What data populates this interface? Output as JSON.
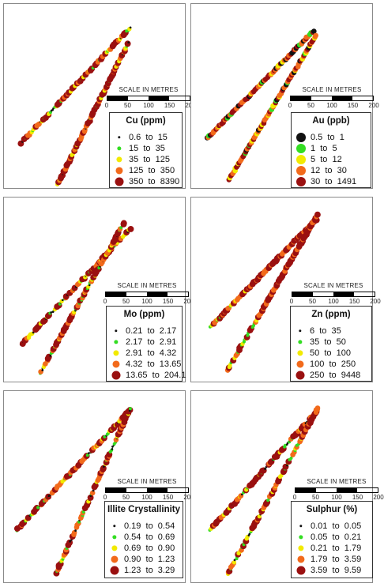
{
  "scale_title": "SCALE IN METRES",
  "scale_ticks": [
    "0",
    "50",
    "100",
    "150",
    "200"
  ],
  "chart_data": [
    {
      "type": "scatter",
      "title": "Cu (ppm)",
      "legend": [
        {
          "label": "0.6  to  15",
          "color": "#111111",
          "size": 1
        },
        {
          "label": "15  to  35",
          "color": "#33dd22",
          "size": 2
        },
        {
          "label": "35  to  125",
          "color": "#f2ea00",
          "size": 3
        },
        {
          "label": "125  to  350",
          "color": "#f26a1b",
          "size": 4
        },
        {
          "label": "350  to  8390",
          "color": "#9a1010",
          "size": 5
        }
      ]
    },
    {
      "type": "scatter",
      "title": "Au (ppb)",
      "legend": [
        {
          "label": "0.5  to  1",
          "color": "#111111",
          "size": 5
        },
        {
          "label": "1  to  5",
          "color": "#33dd22",
          "size": 5
        },
        {
          "label": "5  to  12",
          "color": "#f2ea00",
          "size": 5
        },
        {
          "label": "12  to  30",
          "color": "#f26a1b",
          "size": 5
        },
        {
          "label": "30  to  1491",
          "color": "#9a1010",
          "size": 5
        }
      ]
    },
    {
      "type": "scatter",
      "title": "Mo (ppm)",
      "legend": [
        {
          "label": "0.21  to  2.17",
          "color": "#111111",
          "size": 1
        },
        {
          "label": "2.17  to  2.91",
          "color": "#33dd22",
          "size": 2
        },
        {
          "label": "2.91  to  4.32",
          "color": "#f2ea00",
          "size": 3
        },
        {
          "label": "4.32  to  13.65",
          "color": "#f26a1b",
          "size": 4
        },
        {
          "label": "13.65  to  204.1",
          "color": "#9a1010",
          "size": 5
        }
      ]
    },
    {
      "type": "scatter",
      "title": "Zn (ppm)",
      "legend": [
        {
          "label": "6  to  35",
          "color": "#111111",
          "size": 1
        },
        {
          "label": "35  to  50",
          "color": "#33dd22",
          "size": 2
        },
        {
          "label": "50  to  100",
          "color": "#f2ea00",
          "size": 3
        },
        {
          "label": "100  to  250",
          "color": "#f26a1b",
          "size": 4
        },
        {
          "label": "250  to  9448",
          "color": "#9a1010",
          "size": 5
        }
      ]
    },
    {
      "type": "scatter",
      "title": "Illite Crystallinity",
      "legend": [
        {
          "label": "0.19  to  0.54",
          "color": "#111111",
          "size": 1
        },
        {
          "label": "0.54  to  0.69",
          "color": "#33dd22",
          "size": 2
        },
        {
          "label": "0.69  to  0.90",
          "color": "#f2ea00",
          "size": 3
        },
        {
          "label": "0.90  to  1.23",
          "color": "#f26a1b",
          "size": 4
        },
        {
          "label": "1.23  to  3.29",
          "color": "#9a1010",
          "size": 5
        }
      ]
    },
    {
      "type": "scatter",
      "title": "Sulphur (%)",
      "legend": [
        {
          "label": "0.01  to  0.05",
          "color": "#111111",
          "size": 1
        },
        {
          "label": "0.05  to  0.21",
          "color": "#33dd22",
          "size": 2
        },
        {
          "label": "0.21  to  1.79",
          "color": "#f2ea00",
          "size": 3
        },
        {
          "label": "1.79  to  3.59",
          "color": "#f26a1b",
          "size": 4
        },
        {
          "label": "3.59  to  9.59",
          "color": "#9a1010",
          "size": 5
        }
      ]
    }
  ]
}
